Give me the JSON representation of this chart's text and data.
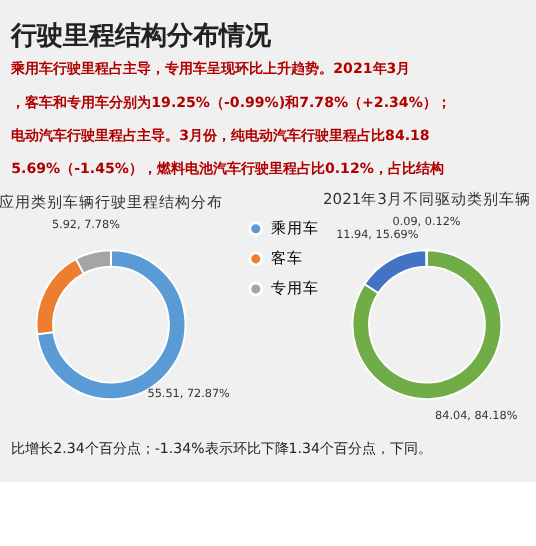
{
  "chart_data": [
    {
      "type": "donut",
      "title": "应用类别车辆行驶里程结构分布",
      "categories": [
        "乘用车",
        "客车",
        "专用车"
      ],
      "values": [
        72.87,
        19.25,
        7.78
      ],
      "colors": [
        "#5b9bd5",
        "#ed7d31",
        "#a5a5a5"
      ],
      "value_labels": [
        "55.51, 72.87%",
        null,
        "5.92, 7.78%"
      ],
      "legend": "right",
      "annotations": [
        "行驶里程结构分布情况",
        "乘用车行驶里程占主导，专用车呈现环比上升趋势。2021年3月",
        "，客车和专用车分别为19.25%（-0.99%)和7.78%（+2.34%）；",
        "电动汽车行驶里程占主导。3月份，纯电动汽车行驶里程占比84.18",
        "5.69%（-1.45%），燃料电池汽车行驶里程占比0.12%，占比结构"
      ]
    },
    {
      "type": "donut",
      "title": "2021年3月不同驱动类别车辆",
      "categories": [
        null,
        null,
        null
      ],
      "values": [
        84.18,
        15.69,
        0.12
      ],
      "colors": [
        "#70ad47",
        "#4472c4",
        "#a5a5a5"
      ],
      "value_labels": [
        "84.04, 84.18%",
        "11.94, 15.69%",
        "0.09, 0.12%"
      ],
      "annotations": [
        "比增长2.34个百分点；-1.34%表示环比下降1.34个百分点，下同。"
      ]
    }
  ]
}
